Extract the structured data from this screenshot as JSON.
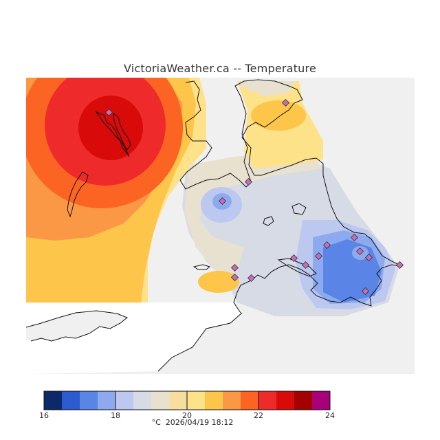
{
  "header": {
    "title": "VictoriaWeather.ca -- Temperature"
  },
  "legend": {
    "unit": "°C",
    "timestamp": "2026/04/19 18:12",
    "min": 16,
    "max": 24,
    "tick_labels": [
      "16",
      "18",
      "20",
      "22",
      "24"
    ],
    "tick_values": [
      16,
      18,
      20,
      22,
      24
    ],
    "step": 0.5,
    "colors": [
      "#0c2a6b",
      "#2c5cd0",
      "#5a84e6",
      "#8eaaee",
      "#bcc8ef",
      "#d7dbe6",
      "#e9e1cf",
      "#f6dda0",
      "#fde28a",
      "#fdc54a",
      "#fb9845",
      "#fc6424",
      "#ef2a2a",
      "#d80a0a",
      "#a50000",
      "#a8007a"
    ]
  },
  "map": {
    "background_color": "#f0f0f0",
    "land_color": "#ffffff",
    "station_marker_color": "#c56db8",
    "station_count": 16
  }
}
